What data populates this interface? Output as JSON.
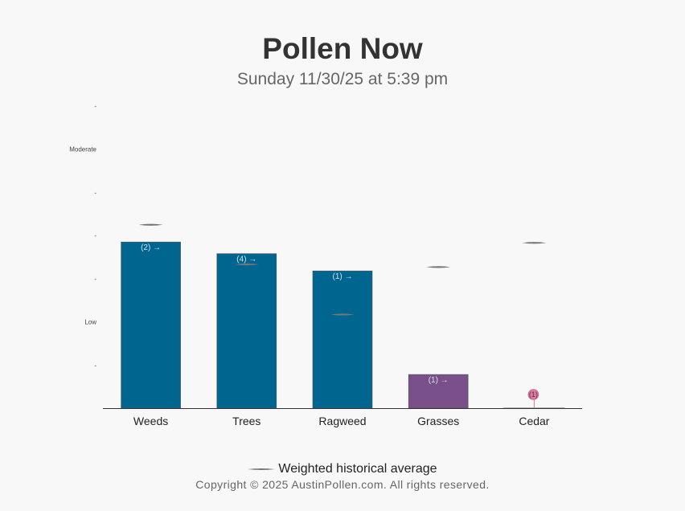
{
  "header": {
    "title": "Pollen Now",
    "subtitle": "Sunday 11/30/25 at 5:39 pm"
  },
  "legend": {
    "label": "Weighted historical average"
  },
  "footer": {
    "copyright": "Copyright © 2025 AustinPollen.com.  All rights reserved."
  },
  "chart_data": {
    "type": "bar",
    "categories": [
      "Weeds",
      "Trees",
      "Ragweed",
      "Grasses",
      "Cedar"
    ],
    "values": [
      3.85,
      3.58,
      3.18,
      0.78,
      0.02
    ],
    "counts": [
      "(2) →",
      "(4) →",
      "(1) →",
      "(1) →",
      "(1)"
    ],
    "bar_colors": [
      "#00668f",
      "#00668f",
      "#00668f",
      "#7a508a",
      "#d77a9d"
    ],
    "historical_average": [
      4.25,
      3.33,
      2.17,
      3.27,
      3.83
    ],
    "ylim": [
      0,
      7
    ],
    "y_ticks": [
      {
        "value": 1,
        "label": "-"
      },
      {
        "value": 2,
        "label": "Low"
      },
      {
        "value": 3,
        "label": "-"
      },
      {
        "value": 4,
        "label": "-"
      },
      {
        "value": 5,
        "label": "-"
      },
      {
        "value": 6,
        "label": "Moderate"
      },
      {
        "value": 7,
        "label": "-"
      }
    ],
    "grid": false,
    "legend_position": "bottom"
  }
}
